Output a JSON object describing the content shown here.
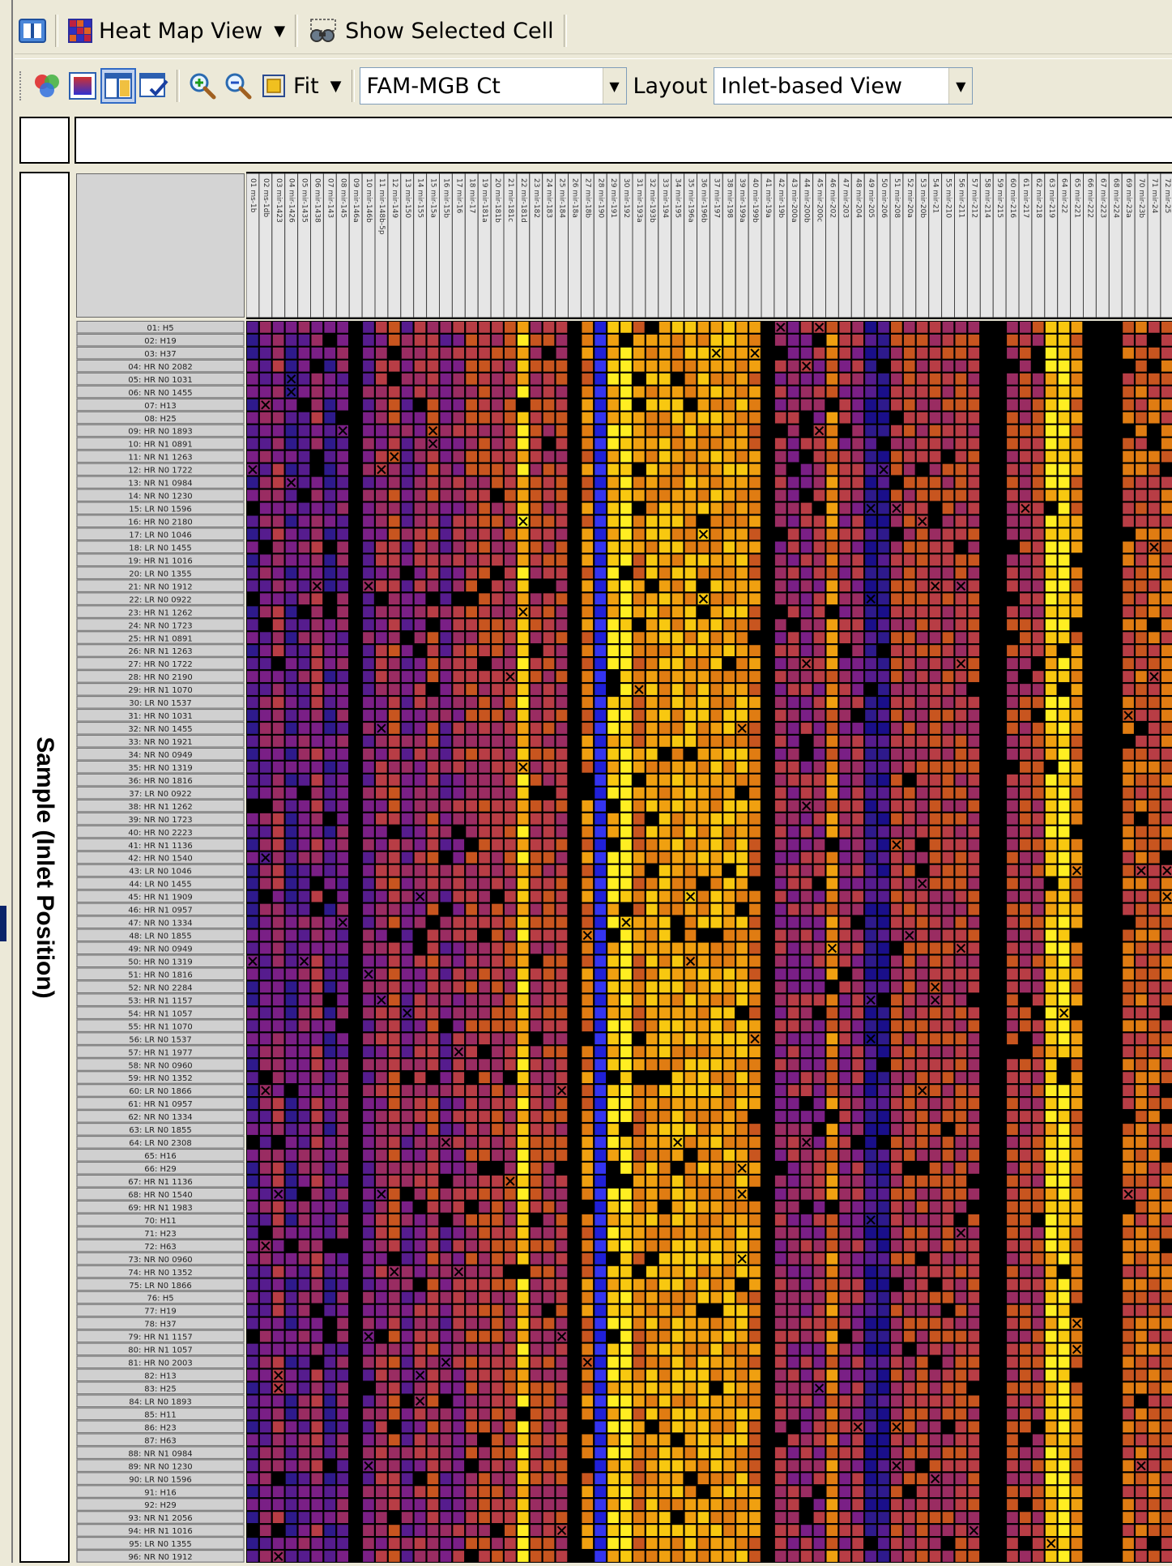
{
  "colors": {
    "accent": "#316ac5",
    "chrome": "#ece9d8",
    "heat_scale": [
      "#000000",
      "#1a0f8a",
      "#2e1a8c",
      "#561c8e",
      "#7a1f86",
      "#9a2c62",
      "#b83d45",
      "#c8551f",
      "#e07c12",
      "#f0a010",
      "#f8c810",
      "#ffee22"
    ]
  },
  "toolbar1": {
    "heat_map_view_label": "Heat Map View",
    "show_selected_cell_label": "Show Selected Cell"
  },
  "toolbar2": {
    "fit_label": "Fit",
    "detector_value": "FAM-MGB Ct",
    "layout_label": "Layout",
    "layout_value": "Inlet-based View"
  },
  "heatmap": {
    "y_axis_label": "Sample (Inlet Position)",
    "row_labels": [
      "01: H5",
      "02: H19",
      "03: H37",
      "04: HR N0 2082",
      "05: HR N0 1031",
      "06: NR N0 1455",
      "07: H13",
      "08: H25",
      "09: HR N0 1893",
      "10: HR N1 0891",
      "11: NR N1 1263",
      "12: HR N0 1722",
      "13: NR N1 0984",
      "14: NR N0 1230",
      "15: LR N0 1596",
      "16: HR N0 2180",
      "17: LR N0 1046",
      "18: LR N0 1455",
      "19: HR N1 1016",
      "20: LR N0 1355",
      "21: NR N0 1912",
      "22: LR N0 0922",
      "23: HR N1 1262",
      "24: NR N0 1723",
      "25: HR N1 0891",
      "26: NR N1 1263",
      "27: HR N0 1722",
      "28: HR N0 2190",
      "29: HR N1 1070",
      "30: LR N0 1537",
      "31: HR N0 1031",
      "32: NR N0 1455",
      "33: NR N0 1921",
      "34: NR N0 0949",
      "35: HR N0 1319",
      "36: HR N0 1816",
      "37: LR N0 0922",
      "38: HR N1 1262",
      "39: NR N0 1723",
      "40: HR N0 2223",
      "41: HR N1 1136",
      "42: HR N0 1540",
      "43: LR N0 1046",
      "44: LR N0 1455",
      "45: HR N1 1909",
      "46: HR N1 0957",
      "47: NR N0 1334",
      "48: LR N0 1855",
      "49: NR N0 0949",
      "50: HR N0 1319",
      "51: HR N0 1816",
      "52: NR N0 2284",
      "53: HR N1 1157",
      "54: HR N1 1057",
      "55: HR N1 1070",
      "56: LR N0 1537",
      "57: HR N1 1977",
      "58: NR N0 0960",
      "59: HR N0 1352",
      "60: LR N0 1866",
      "61: HR N1 0957",
      "62: NR N0 1334",
      "63: LR N0 1855",
      "64: LR N0 2308",
      "65: H16",
      "66: H29",
      "67: HR N1 1136",
      "68: HR N0 1540",
      "69: HR N1 1983",
      "70: H11",
      "71: H23",
      "72: H63",
      "73: NR N0 0960",
      "74: HR N0 1352",
      "75: LR N0 1866",
      "76: H5",
      "77: H19",
      "78: H37",
      "79: HR N1 1157",
      "80: HR N1 1057",
      "81: HR N0 2003",
      "82: H13",
      "83: H25",
      "84: LR N0 1893",
      "85: H11",
      "86: H23",
      "87: H63",
      "88: NR N1 0984",
      "89: NR N0 1230",
      "90: LR N0 1596",
      "91: H16",
      "92: H29",
      "93: NR N1 2056",
      "94: HR N1 1016",
      "95: LR N0 1355",
      "96: NR N0 1912"
    ],
    "column_labels": [
      "01 ms-1b",
      "02 ms-1db",
      "03 mir-1423",
      "04 mir-1426",
      "05 mir-1435",
      "06 mir-1438",
      "07 mir-143",
      "08 mir-145",
      "09 mir-146a",
      "10 mir-146b",
      "11 mir-148b-5p",
      "12 mir-149",
      "13 mir-150",
      "14 mir-155",
      "15 mir-15a",
      "16 mir-15b",
      "17 mir-16",
      "18 mir-17",
      "19 mir-181a",
      "20 mir-181b",
      "21 mir-181c",
      "22 mir-181d",
      "23 mir-182",
      "24 mir-183",
      "25 mir-184",
      "26 mir-18a",
      "27 mir-18b",
      "28 mir-190",
      "29 mir-191",
      "30 mir-192",
      "31 mir-193a",
      "32 mir-193b",
      "33 mir-194",
      "34 mir-195",
      "35 mir-196a",
      "36 mir-196b",
      "37 mir-197",
      "38 mir-198",
      "39 mir-199a",
      "40 mir-199b",
      "41 mir-19a",
      "42 mir-19b",
      "43 mir-200a",
      "44 mir-200b",
      "45 mir-200c",
      "46 mir-202",
      "47 mir-203",
      "48 mir-204",
      "49 mir-205",
      "50 mir-206",
      "51 mir-208",
      "52 mir-20a",
      "53 mir-20b",
      "54 mir-21",
      "55 mir-210",
      "56 mir-211",
      "57 mir-212",
      "58 mir-214",
      "59 mir-215",
      "60 mir-216",
      "61 mir-217",
      "62 mir-218",
      "63 mir-219",
      "64 mir-22",
      "65 mir-221",
      "66 mir-222",
      "67 mir-223",
      "68 mir-224",
      "69 mir-23a",
      "70 mir-23b",
      "71 mir-24",
      "72 mir-25"
    ]
  }
}
